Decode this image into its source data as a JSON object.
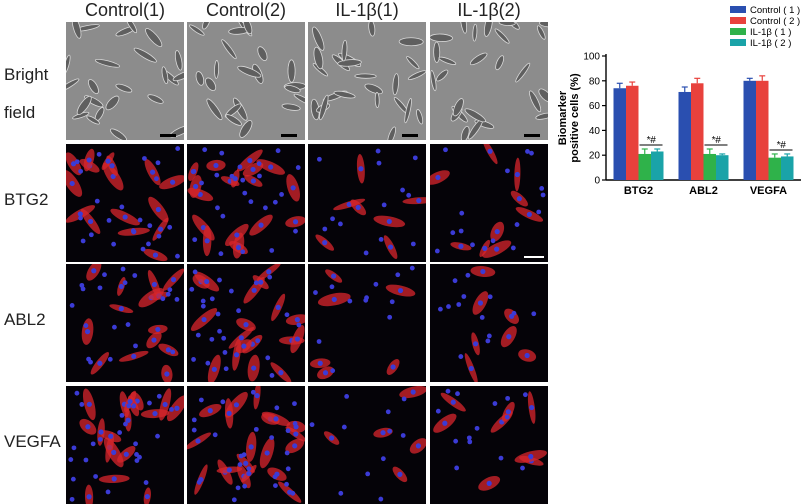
{
  "figure": {
    "columns": [
      "Control(1)",
      "Control(2)",
      "IL-1β(1)",
      "IL-1β(2)"
    ],
    "rows": [
      {
        "label": "Bright field",
        "line1": "Bright",
        "line2": "field",
        "kind": "brightfield"
      },
      {
        "label": "BTG2",
        "kind": "fluorescence"
      },
      {
        "label": "ABL2",
        "kind": "fluorescence"
      },
      {
        "label": "VEGFA",
        "kind": "fluorescence"
      }
    ],
    "colors": {
      "brightfield_bg": "#8c8c8c",
      "fluor_bg": "#050308",
      "stain": "#d8262c",
      "nucleus": "#3b3bd6"
    },
    "cell_density": [
      [
        24,
        22,
        24,
        26
      ],
      [
        16,
        18,
        7,
        9
      ],
      [
        14,
        18,
        6,
        7
      ],
      [
        18,
        20,
        5,
        8
      ]
    ]
  },
  "chart_data": {
    "type": "bar",
    "categories": [
      "BTG2",
      "ABL2",
      "VEGFA"
    ],
    "series": [
      {
        "name": "Control ( 1 )",
        "color": "#2a4fb0",
        "values": [
          74,
          71,
          80
        ],
        "errors": [
          4,
          4,
          2
        ]
      },
      {
        "name": "Control ( 2 )",
        "color": "#e8413c",
        "values": [
          76,
          78,
          80
        ],
        "errors": [
          3,
          4,
          4
        ]
      },
      {
        "name": "IL-1β ( 1 )",
        "color": "#2fb24a",
        "values": [
          21,
          21,
          18
        ],
        "errors": [
          4,
          4,
          3
        ]
      },
      {
        "name": "IL-1β ( 2 )",
        "color": "#1aa3a8",
        "values": [
          23,
          20,
          19
        ],
        "errors": [
          2,
          1,
          2
        ]
      }
    ],
    "ylabel": "Biomarker positive cells (%)",
    "ylabel_lines": [
      "Biomarker",
      "positive cells (%)"
    ],
    "yticks": [
      0,
      20,
      40,
      60,
      80,
      100
    ],
    "ylim": [
      0,
      100
    ],
    "annotations": [
      "*#",
      "*#",
      "*#"
    ],
    "legend": "top-right",
    "grid": false
  }
}
